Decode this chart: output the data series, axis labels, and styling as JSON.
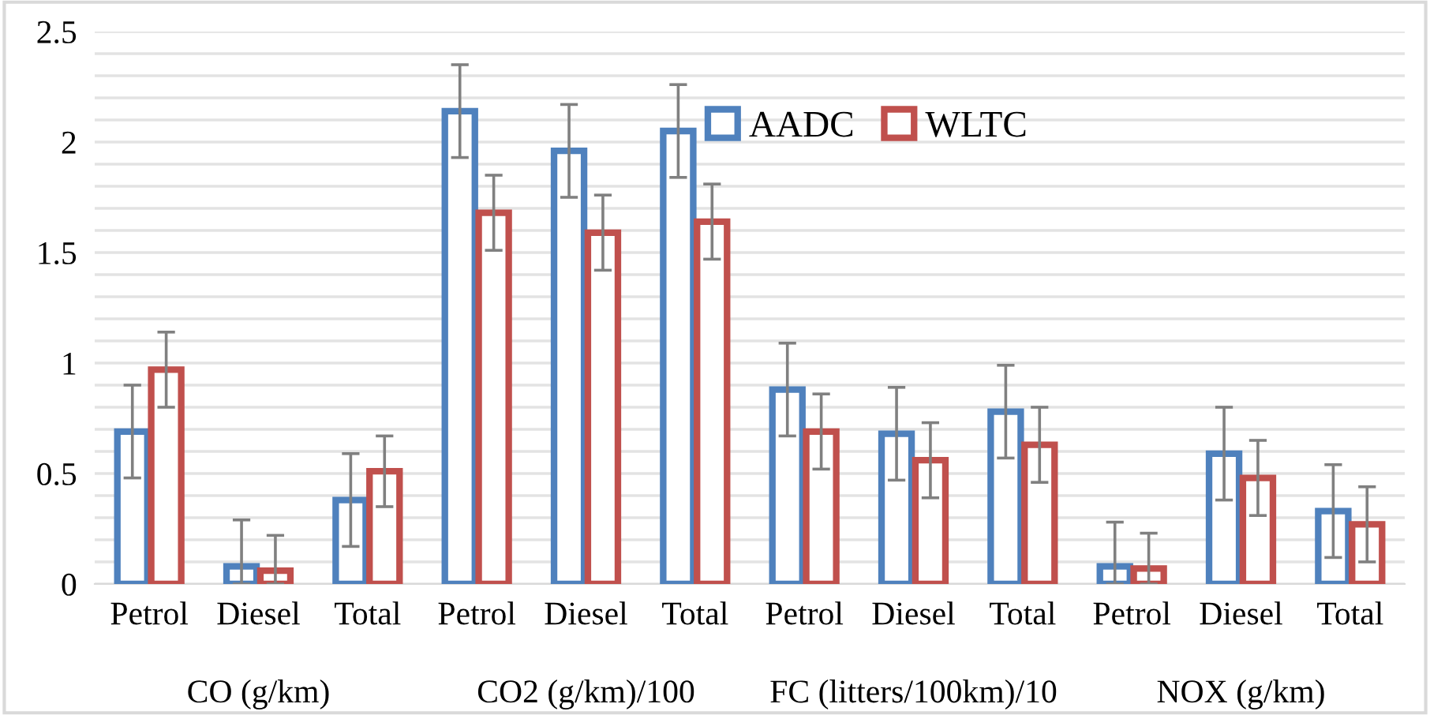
{
  "chart_data": {
    "type": "bar",
    "categories": [
      "Petrol",
      "Diesel",
      "Total",
      "Petrol",
      "Diesel",
      "Total",
      "Petrol",
      "Diesel",
      "Total",
      "Petrol",
      "Diesel",
      "Total"
    ],
    "series": [
      {
        "name": "AADC",
        "color": "#4f81bd",
        "values": [
          0.69,
          0.08,
          0.38,
          2.14,
          1.96,
          2.05,
          0.88,
          0.68,
          0.78,
          0.08,
          0.59,
          0.33
        ],
        "errors": [
          0.21,
          [
            0,
            0.29
          ],
          0.21,
          0.21,
          0.21,
          0.21,
          0.21,
          0.21,
          0.21,
          [
            0,
            0.28
          ],
          0.21,
          0.21
        ]
      },
      {
        "name": "WLTC",
        "color": "#c0504d",
        "values": [
          0.97,
          0.06,
          0.51,
          1.68,
          1.59,
          1.64,
          0.69,
          0.56,
          0.63,
          0.07,
          0.48,
          0.27
        ],
        "errors": [
          0.17,
          [
            0,
            0.22
          ],
          0.16,
          0.17,
          0.17,
          0.17,
          0.17,
          0.17,
          0.17,
          [
            0,
            0.23
          ],
          0.17,
          0.17
        ]
      }
    ],
    "annotations": [
      "CO (g/km)",
      "CO2 (g/km)/100",
      "FC (litters/100km)/10",
      "NOX (g/km)"
    ],
    "ylim": [
      0,
      2.5
    ],
    "yticks": [
      0,
      {
        "value": 0.1,
        "label": null
      },
      {
        "value": 0.2,
        "label": null
      },
      {
        "value": 0.3,
        "label": null
      },
      {
        "value": 0.4,
        "label": null
      },
      0.5,
      {
        "value": 0.6,
        "label": null
      },
      {
        "value": 0.7,
        "label": null
      },
      {
        "value": 0.8,
        "label": null
      },
      {
        "value": 0.9,
        "label": null
      },
      1,
      {
        "value": 1.1,
        "label": null
      },
      {
        "value": 1.2,
        "label": null
      },
      {
        "value": 1.3,
        "label": null
      },
      {
        "value": 1.4,
        "label": null
      },
      1.5,
      {
        "value": 1.6,
        "label": null
      },
      {
        "value": 1.7,
        "label": null
      },
      {
        "value": 1.8,
        "label": null
      },
      {
        "value": 1.9,
        "label": null
      },
      2,
      {
        "value": 2.1,
        "label": null
      },
      {
        "value": 2.2,
        "label": null
      },
      {
        "value": 2.3,
        "label": null
      },
      {
        "value": 2.4,
        "label": null
      },
      2.5
    ],
    "grid": "y",
    "legend": "top"
  }
}
